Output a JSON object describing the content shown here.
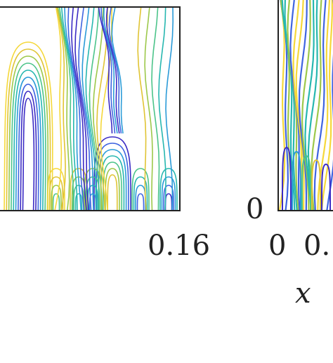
{
  "chart_data": [
    {
      "type": "contour",
      "title": "",
      "xlabel": "",
      "ylabel": "",
      "x_tick_labels": [
        "0.16"
      ],
      "y_tick_labels": [],
      "colormap": [
        "#3b2bc4",
        "#3f64e0",
        "#2b9bd8",
        "#27b7b0",
        "#4cc48a",
        "#9cc84a",
        "#e0c434",
        "#f5d83a"
      ],
      "grid": false
    },
    {
      "type": "contour",
      "title": "",
      "xlabel": "x",
      "ylabel": "",
      "x_tick_labels": [
        "0",
        "0."
      ],
      "y_tick_labels": [
        "0"
      ],
      "colormap": [
        "#3b2bc4",
        "#3f64e0",
        "#2b9bd8",
        "#27b7b0",
        "#4cc48a",
        "#9cc84a",
        "#e0c434",
        "#f5d83a"
      ],
      "grid": false
    }
  ]
}
